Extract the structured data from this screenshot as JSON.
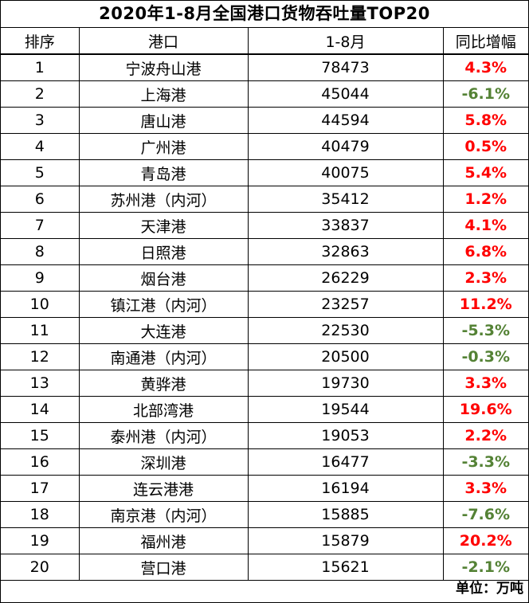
{
  "title": "2020年1-8月全国港口货物吞吐量TOP20",
  "headers": {
    "rank": "排序",
    "port": "港口",
    "value": "1-8月",
    "change": "同比增幅"
  },
  "colors": {
    "positive": "#ff0000",
    "negative": "#548235"
  },
  "rows": [
    {
      "rank": "1",
      "port": "宁波舟山港",
      "value": "78473",
      "change": "4.3%",
      "dir": "up"
    },
    {
      "rank": "2",
      "port": "上海港",
      "value": "45044",
      "change": "-6.1%",
      "dir": "down"
    },
    {
      "rank": "3",
      "port": "唐山港",
      "value": "44594",
      "change": "5.8%",
      "dir": "up"
    },
    {
      "rank": "4",
      "port": "广州港",
      "value": "40479",
      "change": "0.5%",
      "dir": "up"
    },
    {
      "rank": "5",
      "port": "青岛港",
      "value": "40075",
      "change": "5.4%",
      "dir": "up"
    },
    {
      "rank": "6",
      "port": "苏州港（内河）",
      "value": "35412",
      "change": "1.2%",
      "dir": "up"
    },
    {
      "rank": "7",
      "port": "天津港",
      "value": "33837",
      "change": "4.1%",
      "dir": "up"
    },
    {
      "rank": "8",
      "port": "日照港",
      "value": "32863",
      "change": "6.8%",
      "dir": "up"
    },
    {
      "rank": "9",
      "port": "烟台港",
      "value": "26229",
      "change": "2.3%",
      "dir": "up"
    },
    {
      "rank": "10",
      "port": "镇江港（内河）",
      "value": "23257",
      "change": "11.2%",
      "dir": "up"
    },
    {
      "rank": "11",
      "port": "大连港",
      "value": "22530",
      "change": "-5.3%",
      "dir": "down"
    },
    {
      "rank": "12",
      "port": "南通港（内河）",
      "value": "20500",
      "change": "-0.3%",
      "dir": "down"
    },
    {
      "rank": "13",
      "port": "黄骅港",
      "value": "19730",
      "change": "3.3%",
      "dir": "up"
    },
    {
      "rank": "14",
      "port": "北部湾港",
      "value": "19544",
      "change": "19.6%",
      "dir": "up"
    },
    {
      "rank": "15",
      "port": "泰州港（内河）",
      "value": "19053",
      "change": "2.2%",
      "dir": "up"
    },
    {
      "rank": "16",
      "port": "深圳港",
      "value": "16477",
      "change": "-3.3%",
      "dir": "down"
    },
    {
      "rank": "17",
      "port": "连云港港",
      "value": "16194",
      "change": "3.3%",
      "dir": "up"
    },
    {
      "rank": "18",
      "port": "南京港（内河）",
      "value": "15885",
      "change": "-7.6%",
      "dir": "down"
    },
    {
      "rank": "19",
      "port": "福州港",
      "value": "15879",
      "change": "20.2%",
      "dir": "up"
    },
    {
      "rank": "20",
      "port": "营口港",
      "value": "15621",
      "change": "-2.1%",
      "dir": "down"
    }
  ],
  "footer": "单位：万吨"
}
